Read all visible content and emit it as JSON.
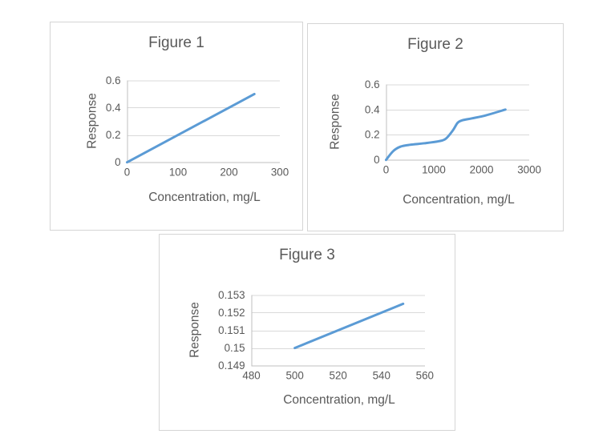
{
  "styles": {
    "accent_blue": "#5b9bd5",
    "grid_color": "#d9d9d9",
    "axis_color": "#bfbfbf",
    "text_color": "#595959",
    "panel_border": "#d5d5d5",
    "background": "#ffffff"
  },
  "chart_data": [
    {
      "type": "line",
      "title": "Figure 1",
      "xlabel": "Concentration, mg/L",
      "ylabel": "Response",
      "xlim": [
        0,
        300
      ],
      "ylim": [
        0,
        0.6
      ],
      "xtick_values": [
        0,
        100,
        200,
        300
      ],
      "xtick_labels": [
        "0",
        "100",
        "200",
        "300"
      ],
      "ytick_values": [
        0,
        0.2,
        0.4,
        0.6
      ],
      "ytick_labels": [
        "0",
        "0.2",
        "0.4",
        "0.6"
      ],
      "grid": true,
      "legend": "none",
      "series": [
        {
          "name": "Response",
          "smooth": false,
          "points": [
            [
              0,
              0
            ],
            [
              250,
              0.5
            ]
          ]
        }
      ]
    },
    {
      "type": "line",
      "title": "Figure 2",
      "xlabel": "Concentration, mg/L",
      "ylabel": "Response",
      "xlim": [
        0,
        3000
      ],
      "ylim": [
        0,
        0.6
      ],
      "xtick_values": [
        0,
        1000,
        2000,
        3000
      ],
      "xtick_labels": [
        "0",
        "1000",
        "2000",
        "3000"
      ],
      "ytick_values": [
        0,
        0.2,
        0.4,
        0.6
      ],
      "ytick_labels": [
        "0",
        "0.2",
        "0.4",
        "0.6"
      ],
      "grid": true,
      "legend": "none",
      "series": [
        {
          "name": "Response",
          "smooth": true,
          "points": [
            [
              0,
              0
            ],
            [
              150,
              0.07
            ],
            [
              300,
              0.105
            ],
            [
              500,
              0.12
            ],
            [
              800,
              0.132
            ],
            [
              1100,
              0.148
            ],
            [
              1250,
              0.168
            ],
            [
              1400,
              0.235
            ],
            [
              1500,
              0.295
            ],
            [
              1600,
              0.315
            ],
            [
              1800,
              0.33
            ],
            [
              2100,
              0.355
            ],
            [
              2500,
              0.4
            ]
          ]
        }
      ]
    },
    {
      "type": "line",
      "title": "Figure 3",
      "xlabel": "Concentration, mg/L",
      "ylabel": "Response",
      "xlim": [
        480,
        560
      ],
      "ylim": [
        0.149,
        0.153
      ],
      "xtick_values": [
        480,
        500,
        520,
        540,
        560
      ],
      "xtick_labels": [
        "480",
        "500",
        "520",
        "540",
        "560"
      ],
      "ytick_values": [
        0.149,
        0.15,
        0.151,
        0.152,
        0.153
      ],
      "ytick_labels": [
        "0.149",
        "0.15",
        "0.151",
        "0.152",
        "0.153"
      ],
      "grid": true,
      "legend": "none",
      "series": [
        {
          "name": "Response",
          "smooth": false,
          "points": [
            [
              500,
              0.15
            ],
            [
              550,
              0.1525
            ]
          ]
        }
      ]
    }
  ]
}
